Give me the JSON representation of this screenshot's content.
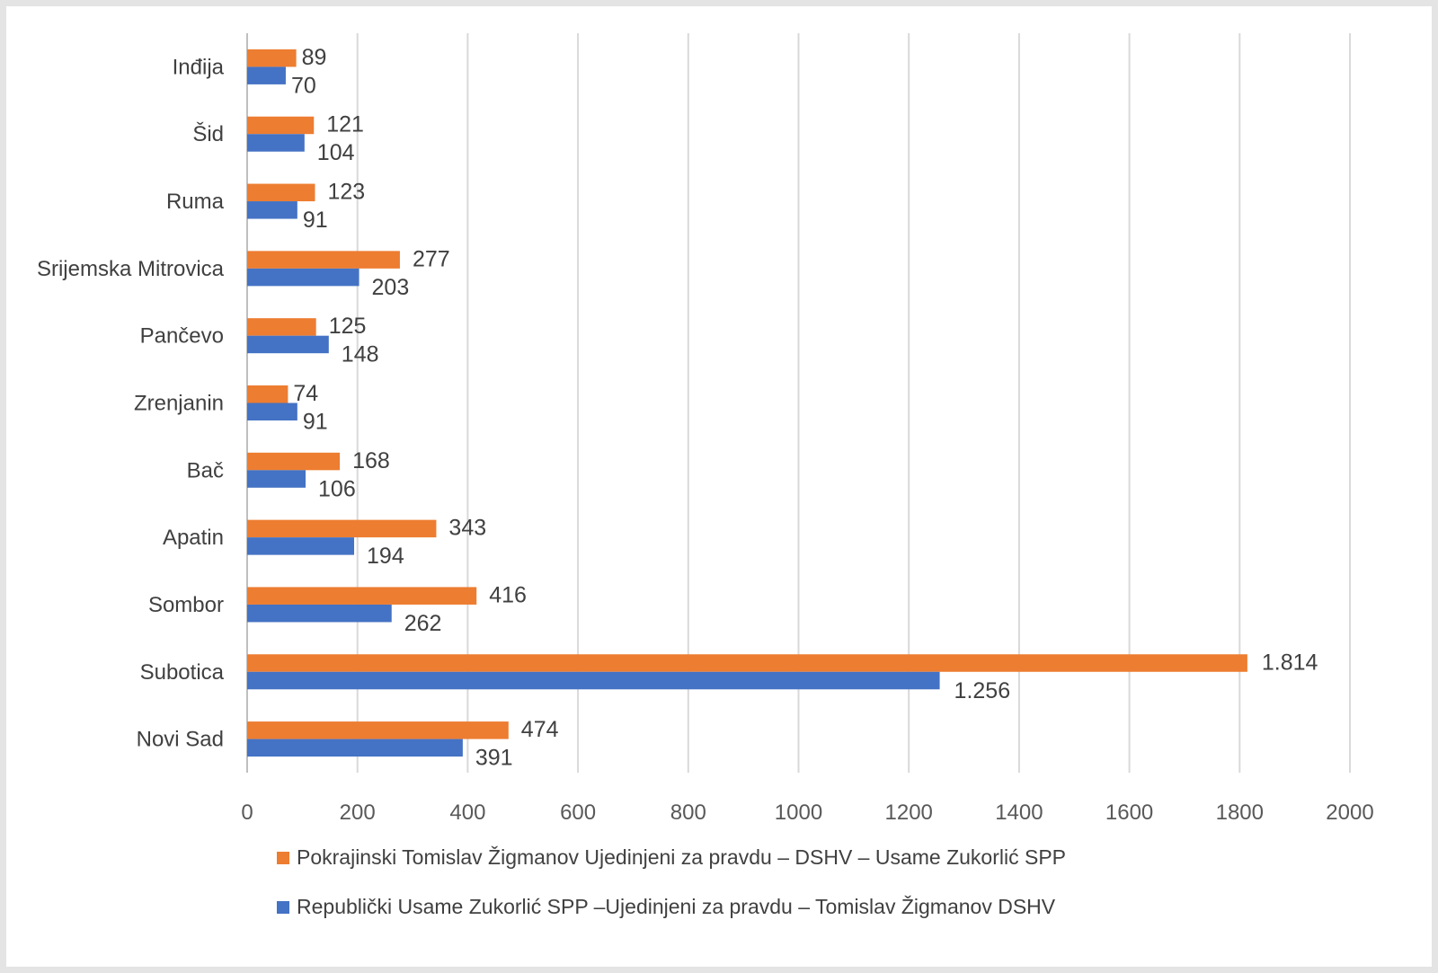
{
  "chart_data": {
    "type": "bar",
    "orientation": "horizontal",
    "categories": [
      "Inđija",
      "Šid",
      "Ruma",
      "Srijemska Mitrovica",
      "Pančevo",
      "Zrenjanin",
      "Bač",
      "Apatin",
      "Sombor",
      "Subotica",
      "Novi Sad"
    ],
    "series": [
      {
        "name": "Pokrajinski  Tomislav Žigmanov Ujedinjeni za pravdu – DSHV – Usame Zukorlić SPP",
        "color": "#ED7D31",
        "values": [
          89,
          121,
          123,
          277,
          125,
          74,
          168,
          343,
          416,
          1814,
          474
        ],
        "labels": [
          "89",
          "121",
          "123",
          "277",
          "125",
          "74",
          "168",
          "343",
          "416",
          "1.814",
          "474"
        ]
      },
      {
        "name": "Republički Usame Zukorlić SPP –Ujedinjeni za pravdu – Tomislav Žigmanov DSHV",
        "color": "#4472C4",
        "values": [
          70,
          104,
          91,
          203,
          148,
          91,
          106,
          194,
          262,
          1256,
          391
        ],
        "labels": [
          "70",
          "104",
          "91",
          "203",
          "148",
          "91",
          "106",
          "194",
          "262",
          "1.256",
          "391"
        ]
      }
    ],
    "xlim": [
      0,
      2000
    ],
    "xticks": [
      "0",
      "200",
      "400",
      "600",
      "800",
      "1000",
      "1200",
      "1400",
      "1600",
      "1800",
      "2000"
    ],
    "grid": true,
    "legend": "bottom",
    "title": "",
    "xlabel": "",
    "ylabel": ""
  }
}
